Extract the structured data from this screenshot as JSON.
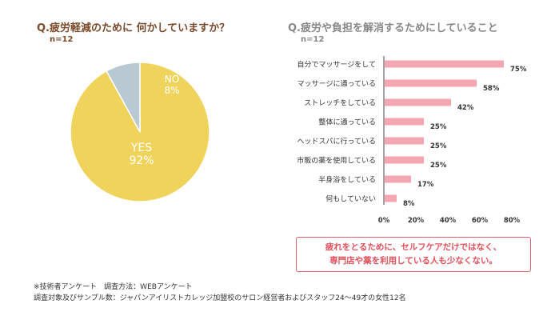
{
  "left_chart": {
    "question": "Q.疲労軽減のために 何かしていますか？",
    "n": "n=12"
  },
  "right_chart": {
    "question": "Q.疲労や負担を解消するためにしていること",
    "n": "n=12"
  },
  "colors": {
    "yes": "#f0d35a",
    "no": "#b9c9d3",
    "bar": "#f4a6b2",
    "callout": "#e0505a"
  },
  "chart_data": [
    {
      "type": "pie",
      "slices": [
        {
          "label": "YES",
          "value": 92,
          "value_label": "92%"
        },
        {
          "label": "NO",
          "value": 8,
          "value_label": "8%"
        }
      ]
    },
    {
      "type": "bar",
      "orientation": "horizontal",
      "categories": [
        "自分でマッサージをして",
        "マッサージに通っている",
        "ストレッチをしている",
        "整体に通っている",
        "ヘッドスパに行っている",
        "市販の薬を使用している",
        "半身浴をしている",
        "何もしていない"
      ],
      "values": [
        75,
        58,
        42,
        25,
        25,
        25,
        17,
        8
      ],
      "value_labels": [
        "75%",
        "58%",
        "42%",
        "25%",
        "25%",
        "25%",
        "17%",
        "8%"
      ],
      "xlim": [
        0,
        80
      ],
      "x_ticks": [
        "0%",
        "20%",
        "40%",
        "60%",
        "80%"
      ],
      "grid": false
    }
  ],
  "callout": {
    "line1": "疲れをとるために、セルフケアだけではなく、",
    "line2": "専門店や薬を利用している人も少なくない。"
  },
  "footnotes": {
    "line1": "※技術者アンケート　調査方法：WEBアンケート",
    "line2": "調査対象及びサンプル数：ジャパンアイリストカレッジ加盟校のサロン経営者およびスタッフ24〜49才の女性12名"
  }
}
